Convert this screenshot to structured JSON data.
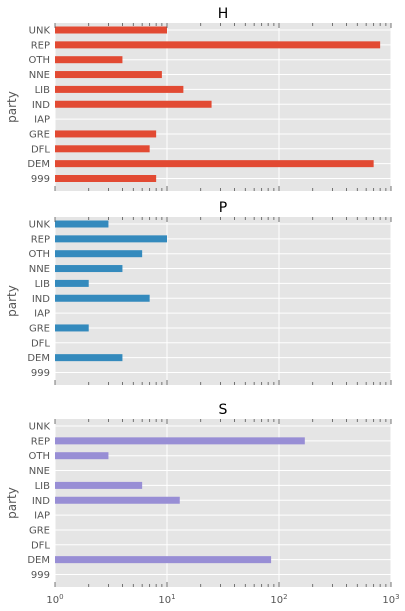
{
  "chart_data": [
    {
      "type": "bar",
      "orientation": "horizontal",
      "title": "H",
      "ylabel": "party",
      "xscale": "log",
      "xlim": [
        1,
        1000
      ],
      "grid": true,
      "color": "#E24A33",
      "categories": [
        "UNK",
        "REP",
        "OTH",
        "NNE",
        "LIB",
        "IND",
        "IAP",
        "GRE",
        "DFL",
        "DEM",
        "999"
      ],
      "values": [
        10,
        800,
        4,
        9,
        14,
        25,
        1,
        8,
        7,
        700,
        8
      ]
    },
    {
      "type": "bar",
      "orientation": "horizontal",
      "title": "P",
      "ylabel": "party",
      "xscale": "log",
      "xlim": [
        1,
        1000
      ],
      "grid": true,
      "color": "#348ABD",
      "categories": [
        "UNK",
        "REP",
        "OTH",
        "NNE",
        "LIB",
        "IND",
        "IAP",
        "GRE",
        "DFL",
        "DEM",
        "999"
      ],
      "values": [
        3,
        10,
        6,
        4,
        2,
        7,
        1,
        2,
        1,
        4,
        1
      ]
    },
    {
      "type": "bar",
      "orientation": "horizontal",
      "title": "S",
      "ylabel": "party",
      "xscale": "log",
      "xlim": [
        1,
        1000
      ],
      "grid": true,
      "color": "#988ED5",
      "categories": [
        "UNK",
        "REP",
        "OTH",
        "NNE",
        "LIB",
        "IND",
        "IAP",
        "GRE",
        "DFL",
        "DEM",
        "999"
      ],
      "values": [
        1,
        170,
        3,
        1,
        6,
        13,
        1,
        1,
        1,
        85,
        1
      ],
      "xticks": [
        {
          "value": 1,
          "base": "10",
          "exp": "0"
        },
        {
          "value": 10,
          "base": "10",
          "exp": "1"
        },
        {
          "value": 100,
          "base": "10",
          "exp": "2"
        },
        {
          "value": 1000,
          "base": "10",
          "exp": "3"
        }
      ]
    }
  ]
}
